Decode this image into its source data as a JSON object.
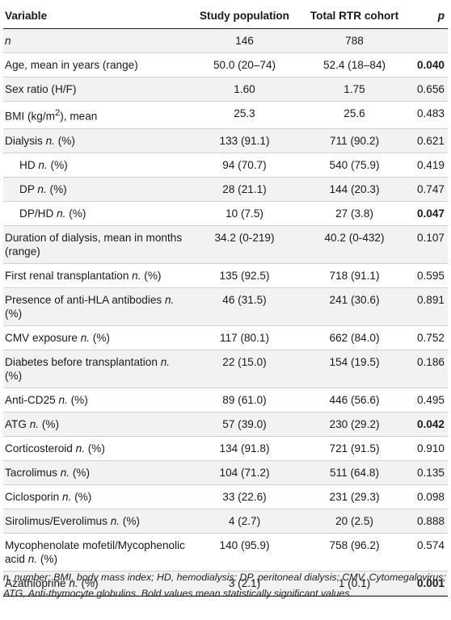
{
  "table": {
    "headers": [
      "Variable",
      "Study population",
      "Total RTR cohort",
      "p"
    ],
    "rows": [
      {
        "label": "n",
        "label_italic": true,
        "study": "146",
        "total": "788",
        "p": "",
        "p_bold": false
      },
      {
        "label": "Age, mean in years (range)",
        "study": "50.0 (20–74)",
        "total": "52.4 (18–84)",
        "p": "0.040",
        "p_bold": true
      },
      {
        "label": "Sex ratio (H/F)",
        "study": "1.60",
        "total": "1.75",
        "p": "0.656",
        "p_bold": false
      },
      {
        "label": "BMI (kg/m2), mean",
        "label_html": "BMI (kg/m<sup>2</sup>), mean",
        "study": "25.3",
        "total": "25.6",
        "p": "0.483",
        "p_bold": false
      },
      {
        "label": "Dialysis n. (%)",
        "label_html": "Dialysis <i>n.</i> (%)",
        "study": "133 (91.1)",
        "total": "711 (90.2)",
        "p": "0.621",
        "p_bold": false
      },
      {
        "label": "HD n. (%)",
        "label_html": "HD <i>n.</i> (%)",
        "indent": true,
        "study": "94 (70.7)",
        "total": "540 (75.9)",
        "p": "0.419",
        "p_bold": false
      },
      {
        "label": "DP n. (%)",
        "label_html": "DP <i>n.</i> (%)",
        "indent": true,
        "study": "28 (21.1)",
        "total": "144 (20.3)",
        "p": "0.747",
        "p_bold": false
      },
      {
        "label": "DP/HD n. (%)",
        "label_html": "DP/HD <i>n.</i> (%)",
        "indent": true,
        "study": "10 (7.5)",
        "total": "27 (3.8)",
        "p": "0.047",
        "p_bold": true
      },
      {
        "label": "Duration of dialysis, mean in months (range)",
        "study": "34.2 (0-219)",
        "total": "40.2 (0-432)",
        "p": "0.107",
        "p_bold": false
      },
      {
        "label": "First renal transplantation n. (%)",
        "label_html": "First renal transplantation <i>n.</i> (%)",
        "study": "135 (92.5)",
        "total": "718 (91.1)",
        "p": "0.595",
        "p_bold": false
      },
      {
        "label": "Presence of anti-HLA antibodies n. (%)",
        "label_html": "Presence of anti-HLA antibodies <i>n.</i> (%)",
        "study": "46 (31.5)",
        "total": "241 (30.6)",
        "p": "0.891",
        "p_bold": false
      },
      {
        "label": "CMV exposure n. (%)",
        "label_html": "CMV exposure <i>n.</i> (%)",
        "study": "117 (80.1)",
        "total": "662 (84.0)",
        "p": "0.752",
        "p_bold": false
      },
      {
        "label": "Diabetes before transplantation n. (%)",
        "label_html": "Diabetes before transplantation <i>n.</i> (%)",
        "study": "22 (15.0)",
        "total": "154 (19.5)",
        "p": "0.186",
        "p_bold": false
      },
      {
        "label": "Anti-CD25 n. (%)",
        "label_html": "Anti-CD25 <i>n.</i> (%)",
        "study": "89 (61.0)",
        "total": "446 (56.6)",
        "p": "0.495",
        "p_bold": false
      },
      {
        "label": "ATG n. (%)",
        "label_html": "ATG <i>n.</i> (%)",
        "study": "57 (39.0)",
        "total": "230 (29.2)",
        "p": "0.042",
        "p_bold": true
      },
      {
        "label": "Corticosteroid n. (%)",
        "label_html": "Corticosteroid <i>n.</i> (%)",
        "study": "134 (91.8)",
        "total": "721 (91.5)",
        "p": "0.910",
        "p_bold": false
      },
      {
        "label": "Tacrolimus n. (%)",
        "label_html": "Tacrolimus <i>n.</i> (%)",
        "study": "104 (71.2)",
        "total": "511 (64.8)",
        "p": "0.135",
        "p_bold": false
      },
      {
        "label": "Ciclosporin n. (%)",
        "label_html": "Ciclosporin <i>n.</i> (%)",
        "study": "33 (22.6)",
        "total": "231 (29.3)",
        "p": "0.098",
        "p_bold": false
      },
      {
        "label": "Sirolimus/Everolimus n. (%)",
        "label_html": "Sirolimus/Everolimus <i>n.</i> (%)",
        "study": "4 (2.7)",
        "total": "20 (2.5)",
        "p": "0.888",
        "p_bold": false
      },
      {
        "label": "Mycophenolate mofetil/Mycophenolic acid n. (%)",
        "label_html": "Mycophenolate mofetil/Mycophenolic acid <i>n.</i> (%)",
        "study": "140 (95.9)",
        "total": "758 (96.2)",
        "p": "0.574",
        "p_bold": false
      },
      {
        "label": "Azathioprine n. (%)",
        "label_html": "Azathioprine <i>n.</i> (%)",
        "study": "3 (2.1)",
        "total": "1 (0.1)",
        "p": "0.001",
        "p_bold": true
      }
    ]
  },
  "footnote": "n, number; BMI, body mass index; HD, hemodialysis; DP, peritoneal dialysis; CMV, Cytomegalovirus; ATG, Anti-thymocyte globulins. Bold values mean statistically significant values."
}
